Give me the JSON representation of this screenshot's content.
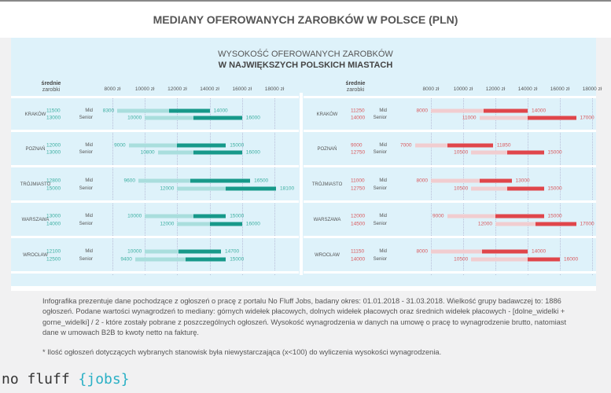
{
  "title": "MEDIANY OFEROWANYCH ZAROBKÓW W POLSCE (PLN)",
  "subtitle_line1": "WYSOKOŚĆ OFEROWANYCH ZAROBKÓW",
  "subtitle_line2": "W NAJWIĘKSZYCH POLSKICH MIASTACH",
  "column_header_bold": "średnie",
  "column_header": "zarobki",
  "note": "Infografika prezentuje dane pochodzące z ogłoszeń o pracę z portalu No Fluff Jobs, badany okres: 01.01.2018 - 31.03.2018. Wielkość grupy badawczej to: 1886 ogłoszeń. Podane wartości wynagrodzeń to mediany: górnych widełek płacowych, dolnych widełek płacowych oraz średnich widełek płacowych - [dolne_widelki + gorne_widelki] / 2 - które zostały pobrane z poszczególnych ogłoszeń. Wysokość wynagrodzenia w danych na umowę o pracę to wynagrodzenie brutto, natomiast dane w umowach B2B to kwoty netto na fakturę.",
  "footnote": "* Ilość ogłoszeń dotyczących wybranych stanowisk była niewystarczająca (x<100) do wyliczenia wysokości wynagrodzenia.",
  "logo": {
    "text": "no fluff ",
    "accent": "{jobs}"
  },
  "chart_data": [
    {
      "type": "bar",
      "orientation": "horizontal-range",
      "xlim": [
        8000,
        18000
      ],
      "ticks": [
        "8000 zł",
        "10000 zł",
        "12000 zł",
        "14000 zł",
        "16000 zł",
        "18000 zł"
      ],
      "colors": {
        "light": "#a9dedd",
        "dark": "#17998a",
        "text": "#3aaea0"
      },
      "levels": [
        "Mid",
        "Senior"
      ],
      "cities": [
        {
          "name": "KRAKÓW",
          "rows": [
            {
              "level": "Mid",
              "min": 8300,
              "avg": 11500,
              "max": 14000
            },
            {
              "level": "Senior",
              "min": 10000,
              "avg": 13000,
              "max": 16000
            }
          ]
        },
        {
          "name": "POZNAŃ",
          "rows": [
            {
              "level": "Mid",
              "min": 9000,
              "avg": 12000,
              "max": 15000
            },
            {
              "level": "Senior",
              "min": 10800,
              "avg": 13000,
              "max": 16000
            }
          ]
        },
        {
          "name": "TRÓJMIASTO",
          "rows": [
            {
              "level": "Mid",
              "min": 9600,
              "avg": 12800,
              "max": 16500
            },
            {
              "level": "Senior",
              "min": 12000,
              "avg": 15000,
              "max": 18100
            }
          ]
        },
        {
          "name": "WARSZAWA",
          "rows": [
            {
              "level": "Mid",
              "min": 10000,
              "avg": 13000,
              "max": 15000
            },
            {
              "level": "Senior",
              "min": 12000,
              "avg": 14000,
              "max": 16000
            }
          ]
        },
        {
          "name": "WROCŁAW",
          "rows": [
            {
              "level": "Mid",
              "min": 10000,
              "avg": 12100,
              "max": 14700
            },
            {
              "level": "Senior",
              "min": 9400,
              "avg": 12500,
              "max": 15000
            }
          ]
        }
      ]
    },
    {
      "type": "bar",
      "orientation": "horizontal-range",
      "xlim": [
        8000,
        18000
      ],
      "ticks": [
        "8000 zł",
        "10000 zł",
        "12000 zł",
        "14000 zł",
        "16000 zł",
        "18000 zł"
      ],
      "colors": {
        "light": "#f1cdd0",
        "dark": "#e0464b",
        "text": "#d9575b"
      },
      "levels": [
        "Mid",
        "Senior"
      ],
      "cities": [
        {
          "name": "KRAKÓW",
          "rows": [
            {
              "level": "Mid",
              "min": 8000,
              "avg": 11250,
              "max": 14000
            },
            {
              "level": "Senior",
              "min": 11000,
              "avg": 14000,
              "max": 17000
            }
          ]
        },
        {
          "name": "POZNAŃ",
          "rows": [
            {
              "level": "Mid",
              "min": 7000,
              "avg": 9000,
              "max": 11850
            },
            {
              "level": "Senior",
              "min": 10500,
              "avg": 12750,
              "max": 15000
            }
          ]
        },
        {
          "name": "TRÓJMIASTO",
          "rows": [
            {
              "level": "Mid",
              "min": 8000,
              "avg": 11000,
              "max": 13000
            },
            {
              "level": "Senior",
              "min": 10500,
              "avg": 12750,
              "max": 15000
            }
          ]
        },
        {
          "name": "WARSZAWA",
          "rows": [
            {
              "level": "Mid",
              "min": 9000,
              "avg": 12000,
              "max": 15000
            },
            {
              "level": "Senior",
              "min": 12000,
              "avg": 14500,
              "max": 17000
            }
          ]
        },
        {
          "name": "WROCŁAW",
          "rows": [
            {
              "level": "Mid",
              "min": 8000,
              "avg": 11150,
              "max": 14000
            },
            {
              "level": "Senior",
              "min": 10500,
              "avg": 14000,
              "max": 16000
            }
          ]
        }
      ]
    }
  ]
}
